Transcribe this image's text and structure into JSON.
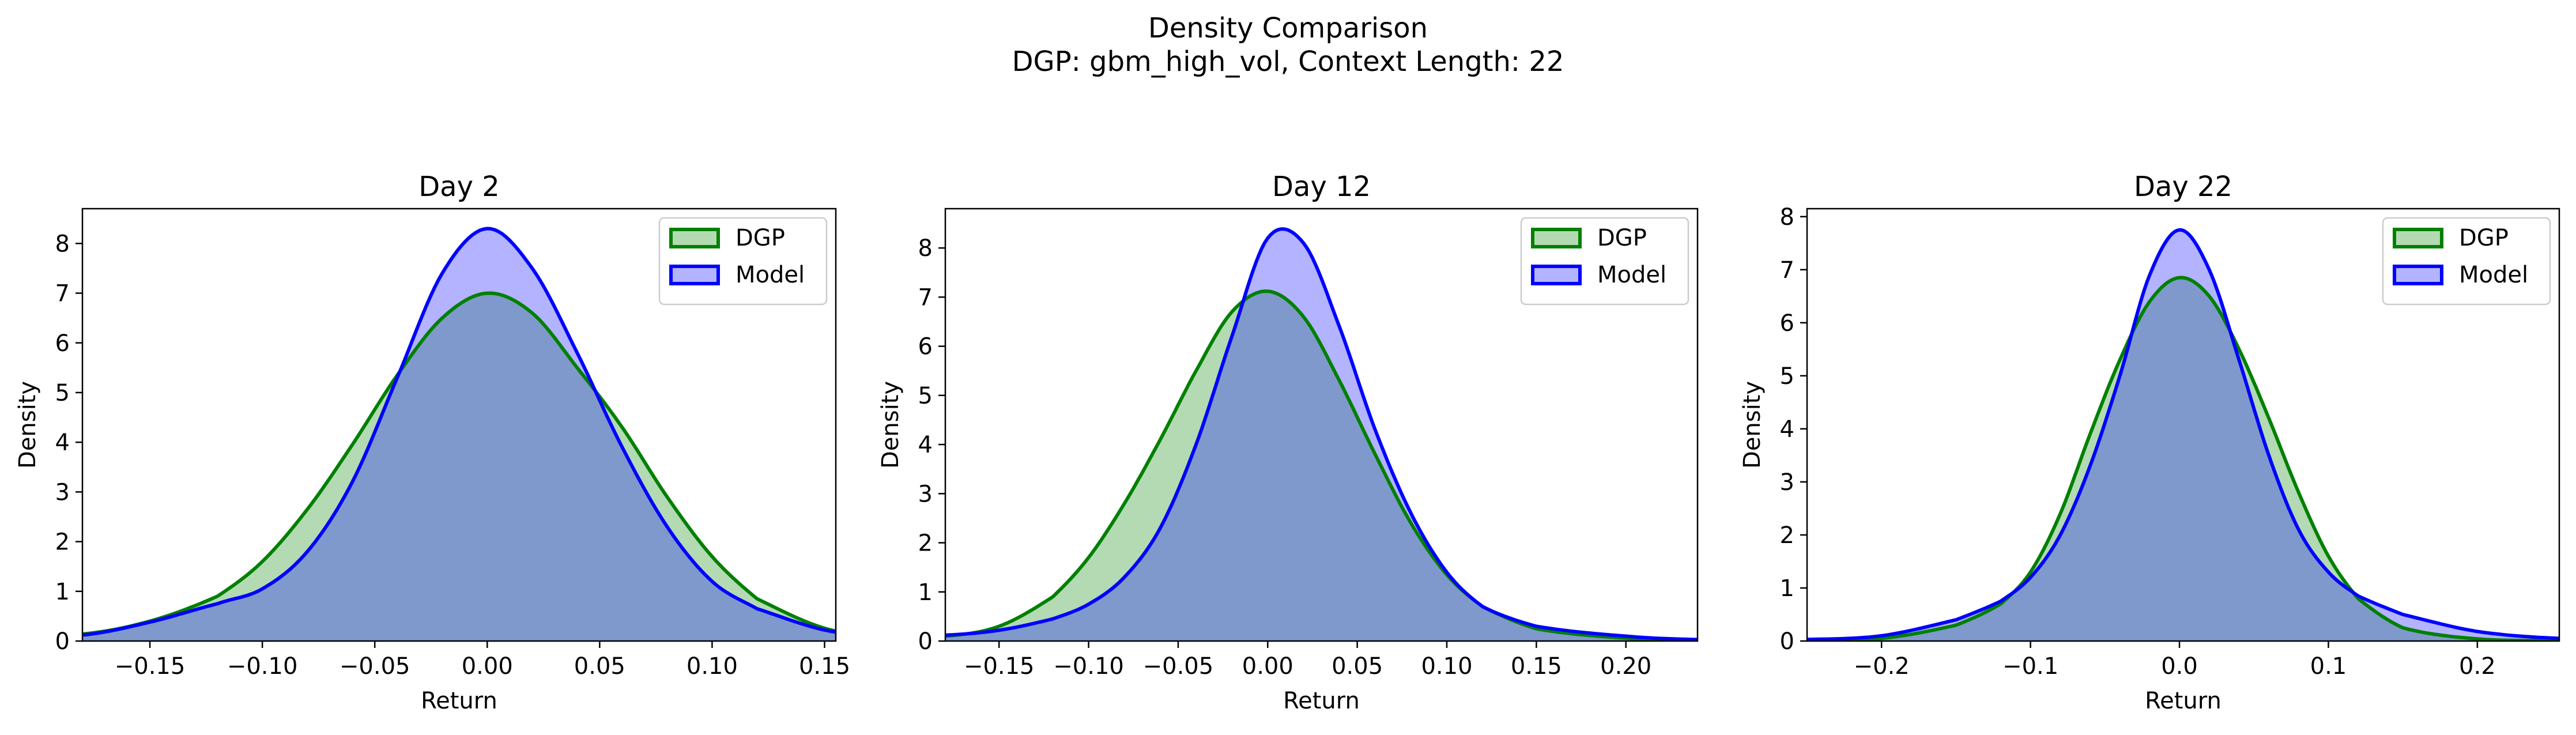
{
  "suptitle": {
    "line1": "Density Comparison",
    "line2": "DGP: gbm_high_vol, Context Length: 22"
  },
  "colors": {
    "dgp_line": "#008000",
    "dgp_fill": "#b3dab3",
    "model_line": "#0000ff",
    "model_fill": "#b3b3ff",
    "overlap_fill": "#7f99cc"
  },
  "chart_data": [
    {
      "type": "area",
      "title": "Day 2",
      "xlabel": "Return",
      "ylabel": "Density",
      "xlim": [
        -0.18,
        0.155
      ],
      "ylim": [
        0,
        8.7
      ],
      "xticks": [
        -0.15,
        -0.1,
        -0.05,
        0.0,
        0.05,
        0.1,
        0.15
      ],
      "xtick_labels": [
        "−0.15",
        "−0.10",
        "−0.05",
        "0.00",
        "0.05",
        "0.10",
        "0.15"
      ],
      "yticks": [
        0,
        1,
        2,
        3,
        4,
        5,
        6,
        7,
        8
      ],
      "legend": {
        "position": "top-right",
        "entries": [
          "DGP",
          "Model"
        ]
      },
      "series": [
        {
          "name": "DGP",
          "x": [
            -0.18,
            -0.15,
            -0.12,
            -0.1,
            -0.08,
            -0.06,
            -0.04,
            -0.02,
            0.0,
            0.02,
            0.04,
            0.06,
            0.08,
            0.1,
            0.12,
            0.155
          ],
          "y": [
            0.14,
            0.4,
            0.9,
            1.6,
            2.65,
            3.95,
            5.35,
            6.5,
            7.0,
            6.6,
            5.5,
            4.3,
            2.9,
            1.7,
            0.85,
            0.2
          ]
        },
        {
          "name": "Model",
          "x": [
            -0.18,
            -0.15,
            -0.12,
            -0.1,
            -0.08,
            -0.06,
            -0.04,
            -0.02,
            0.0,
            0.02,
            0.04,
            0.06,
            0.08,
            0.1,
            0.12,
            0.155
          ],
          "y": [
            0.12,
            0.38,
            0.75,
            1.05,
            1.8,
            3.2,
            5.3,
            7.4,
            8.3,
            7.5,
            5.8,
            3.9,
            2.3,
            1.2,
            0.65,
            0.18
          ]
        }
      ]
    },
    {
      "type": "area",
      "title": "Day 12",
      "xlabel": "Return",
      "ylabel": "Density",
      "xlim": [
        -0.18,
        0.24
      ],
      "ylim": [
        0,
        8.8
      ],
      "xticks": [
        -0.15,
        -0.1,
        -0.05,
        0.0,
        0.05,
        0.1,
        0.15,
        0.2
      ],
      "xtick_labels": [
        "−0.15",
        "−0.10",
        "−0.05",
        "0.00",
        "0.05",
        "0.10",
        "0.15",
        "0.20"
      ],
      "yticks": [
        0,
        1,
        2,
        3,
        4,
        5,
        6,
        7,
        8
      ],
      "legend": {
        "position": "top-right",
        "entries": [
          "DGP",
          "Model"
        ]
      },
      "series": [
        {
          "name": "DGP",
          "x": [
            -0.18,
            -0.15,
            -0.12,
            -0.1,
            -0.08,
            -0.06,
            -0.04,
            -0.02,
            0.0,
            0.02,
            0.04,
            0.06,
            0.08,
            0.1,
            0.12,
            0.15,
            0.2,
            0.24
          ],
          "y": [
            0.1,
            0.3,
            0.9,
            1.7,
            2.8,
            4.1,
            5.5,
            6.7,
            7.12,
            6.6,
            5.3,
            3.8,
            2.4,
            1.35,
            0.7,
            0.25,
            0.06,
            0.02
          ]
        },
        {
          "name": "Model",
          "x": [
            -0.18,
            -0.15,
            -0.12,
            -0.1,
            -0.08,
            -0.06,
            -0.04,
            -0.02,
            0.0,
            0.02,
            0.04,
            0.06,
            0.08,
            0.1,
            0.12,
            0.15,
            0.2,
            0.24
          ],
          "y": [
            0.12,
            0.22,
            0.45,
            0.75,
            1.3,
            2.3,
            4.0,
            6.2,
            8.2,
            8.1,
            6.4,
            4.3,
            2.6,
            1.4,
            0.7,
            0.3,
            0.1,
            0.03
          ]
        }
      ]
    },
    {
      "type": "area",
      "title": "Day 22",
      "xlabel": "Return",
      "ylabel": "Density",
      "xlim": [
        -0.25,
        0.255
      ],
      "ylim": [
        0,
        8.15
      ],
      "xticks": [
        -0.2,
        -0.1,
        0.0,
        0.1,
        0.2
      ],
      "xtick_labels": [
        "−0.2",
        "−0.1",
        "0.0",
        "0.1",
        "0.2"
      ],
      "yticks": [
        0,
        1,
        2,
        3,
        4,
        5,
        6,
        7,
        8
      ],
      "legend": {
        "position": "top-right",
        "entries": [
          "DGP",
          "Model"
        ]
      },
      "series": [
        {
          "name": "DGP",
          "x": [
            -0.25,
            -0.2,
            -0.15,
            -0.12,
            -0.1,
            -0.08,
            -0.06,
            -0.04,
            -0.02,
            0.0,
            0.02,
            0.04,
            0.06,
            0.08,
            0.1,
            0.12,
            0.15,
            0.2,
            0.255
          ],
          "y": [
            0.01,
            0.05,
            0.3,
            0.7,
            1.3,
            2.4,
            3.9,
            5.3,
            6.4,
            6.85,
            6.5,
            5.5,
            4.2,
            2.8,
            1.6,
            0.8,
            0.25,
            0.04,
            0.01
          ]
        },
        {
          "name": "Model",
          "x": [
            -0.25,
            -0.2,
            -0.15,
            -0.12,
            -0.1,
            -0.08,
            -0.06,
            -0.04,
            -0.02,
            0.0,
            0.02,
            0.04,
            0.06,
            0.08,
            0.1,
            0.12,
            0.15,
            0.2,
            0.255
          ],
          "y": [
            0.03,
            0.1,
            0.4,
            0.75,
            1.2,
            2.0,
            3.3,
            5.0,
            6.9,
            7.75,
            7.0,
            5.3,
            3.5,
            2.1,
            1.3,
            0.85,
            0.5,
            0.18,
            0.05
          ]
        }
      ]
    }
  ]
}
